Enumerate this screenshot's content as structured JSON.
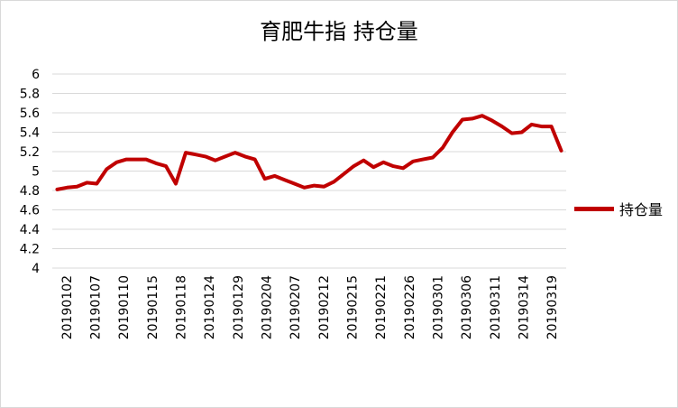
{
  "chart_data": {
    "type": "line",
    "title": "育肥牛指 持仓量",
    "xlabel": "",
    "ylabel": "",
    "ylim": [
      4,
      6
    ],
    "yticks": [
      "4",
      "4.2",
      "4.4",
      "4.6",
      "4.8",
      "5",
      "5.2",
      "5.4",
      "5.6",
      "5.8",
      "6"
    ],
    "grid": true,
    "legend_position": "right",
    "color": "#c00000",
    "x_tick_labels": [
      "20190102",
      "20190107",
      "20190110",
      "20190115",
      "20190118",
      "20190124",
      "20190129",
      "20190204",
      "20190207",
      "20190212",
      "20190215",
      "20190221",
      "20190226",
      "20190301",
      "20190306",
      "20190311",
      "20190314",
      "20190319"
    ],
    "series": [
      {
        "name": "持仓量",
        "values": [
          4.81,
          4.83,
          4.84,
          4.88,
          4.87,
          5.02,
          5.09,
          5.12,
          5.12,
          5.12,
          5.08,
          5.05,
          4.87,
          5.19,
          5.17,
          5.15,
          5.11,
          5.15,
          5.19,
          5.15,
          5.12,
          4.92,
          4.95,
          4.91,
          4.87,
          4.83,
          4.85,
          4.84,
          4.89,
          4.97,
          5.05,
          5.11,
          5.04,
          5.09,
          5.05,
          5.03,
          5.1,
          5.12,
          5.14,
          5.24,
          5.4,
          5.53,
          5.54,
          5.57,
          5.52,
          5.46,
          5.39,
          5.4,
          5.48,
          5.46,
          5.46,
          5.21
        ]
      }
    ]
  }
}
